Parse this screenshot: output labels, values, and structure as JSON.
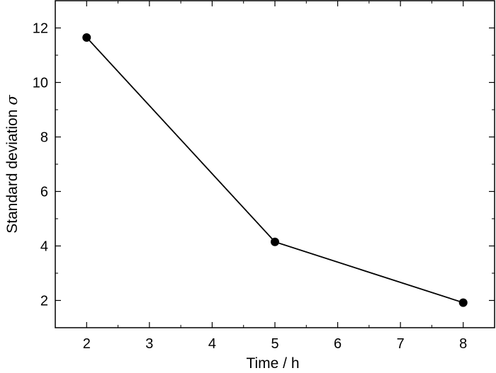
{
  "chart_data": {
    "type": "line",
    "xlabel": "Time / h",
    "ylabel": "Standard deviation",
    "ylabel_symbol": "σ",
    "xlim": [
      1.5,
      8.5
    ],
    "ylim": [
      1,
      13
    ],
    "xticks": [
      2,
      3,
      4,
      5,
      6,
      7,
      8
    ],
    "yticks": [
      2,
      4,
      6,
      8,
      10,
      12
    ],
    "grid": false,
    "series": [
      {
        "x": [
          2,
          5,
          8
        ],
        "y": [
          11.65,
          4.15,
          1.92
        ],
        "color": "#000000",
        "marker": "filled-circle"
      }
    ]
  }
}
